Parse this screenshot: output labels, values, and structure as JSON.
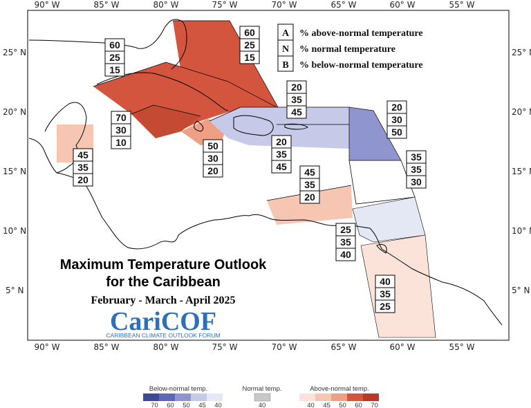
{
  "map": {
    "lon_ticks": [
      "90° W",
      "85° W",
      "80° W",
      "75° W",
      "70° W",
      "65° W",
      "60° W",
      "55° W"
    ],
    "lat_ticks": [
      "25° N",
      "20° N",
      "15° N",
      "10° N",
      "5° N"
    ],
    "key": {
      "rows": [
        {
          "letter": "A",
          "text": "% above-normal temperature"
        },
        {
          "letter": "N",
          "text": "% normal temperature"
        },
        {
          "letter": "B",
          "text": "% below-normal temperature"
        }
      ]
    },
    "title_line1": "Maximum Temperature Outlook",
    "title_line2": "for the Caribbean",
    "subtitle": "February - March - April 2025",
    "logo_text": "CariCOF",
    "logo_subtext": "CARIBBEAN CLIMATE OUTLOOK FORUM",
    "region_colors": {
      "above70": "#c44a33",
      "above60": "#d4553e",
      "above50": "#ee9f84",
      "above45": "#f7c6b3",
      "above40": "#fbe3d9",
      "below40": "#e4e8f5",
      "below45": "#c6c9e8",
      "below50": "#8f95cf"
    },
    "regions": [
      {
        "id": "bahamas",
        "above": "60",
        "normal": "25",
        "below": "15"
      },
      {
        "id": "cuba",
        "above": "60",
        "normal": "25",
        "below": "15"
      },
      {
        "id": "jamaica-cayman",
        "above": "70",
        "normal": "30",
        "below": "10"
      },
      {
        "id": "belize",
        "above": "45",
        "normal": "35",
        "below": "20"
      },
      {
        "id": "haiti-dr-south",
        "above": "50",
        "normal": "30",
        "below": "20"
      },
      {
        "id": "hispaniola-pr",
        "above": "20",
        "normal": "35",
        "below": "45"
      },
      {
        "id": "turks-caicos",
        "above": "20",
        "normal": "35",
        "below": "45"
      },
      {
        "id": "leeward",
        "above": "20",
        "normal": "30",
        "below": "50"
      },
      {
        "id": "windward",
        "above": "35",
        "normal": "35",
        "below": "30"
      },
      {
        "id": "abc-islands",
        "above": "45",
        "normal": "35",
        "below": "20"
      },
      {
        "id": "trinidad",
        "above": "25",
        "normal": "35",
        "below": "40"
      },
      {
        "id": "guianas",
        "above": "40",
        "normal": "35",
        "below": "25"
      }
    ]
  },
  "legend": {
    "below_title": "Below-normal temp.",
    "normal_title": "Normal temp.",
    "above_title": "Above-normal temp.",
    "below_colors": [
      "#3d4a94",
      "#5f68b4",
      "#8f95cf",
      "#c6c9e8",
      "#e4e8f5"
    ],
    "below_ticks": [
      "70",
      "60",
      "50",
      "45",
      "40"
    ],
    "normal_color": "#c8c8c8",
    "normal_tick": "40",
    "above_colors": [
      "#fbe3d9",
      "#f7c6b3",
      "#ee9f84",
      "#d4553e",
      "#b8392a"
    ],
    "above_ticks": [
      "40",
      "45",
      "50",
      "60",
      "70"
    ]
  }
}
